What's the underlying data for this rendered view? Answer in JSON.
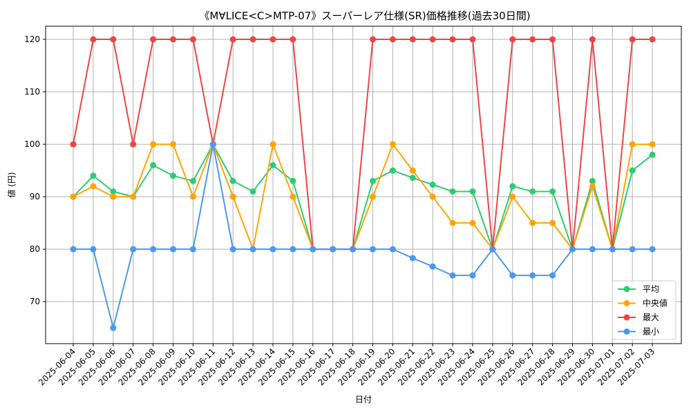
{
  "chart_data": {
    "type": "line",
    "title": "《M∀LICE<C>MTP-07》スーパーレア仕様(SR)価格推移(過去30日間)",
    "xlabel": "日付",
    "ylabel": "値 (円)",
    "ylim": [
      62,
      122.5
    ],
    "yticks": [
      70,
      80,
      90,
      100,
      110,
      120
    ],
    "grid": true,
    "legend_position": "lower-right",
    "categories": [
      "2025-06-04",
      "2025-06-05",
      "2025-06-06",
      "2025-06-07",
      "2025-06-08",
      "2025-06-09",
      "2025-06-10",
      "2025-06-11",
      "2025-06-12",
      "2025-06-13",
      "2025-06-14",
      "2025-06-15",
      "2025-06-16",
      "2025-06-17",
      "2025-06-18",
      "2025-06-19",
      "2025-06-20",
      "2025-06-21",
      "2025-06-22",
      "2025-06-23",
      "2025-06-24",
      "2025-06-25",
      "2025-06-26",
      "2025-06-27",
      "2025-06-28",
      "2025-06-29",
      "2025-06-30",
      "2025-07-01",
      "2025-07-02",
      "2025-07-03"
    ],
    "series": [
      {
        "name": "平均",
        "color": "#2ecc71",
        "values": [
          90,
          94,
          91,
          90,
          96,
          94,
          93,
          100,
          93,
          91,
          96,
          93,
          80,
          80,
          80,
          93,
          95,
          93.6,
          92.3,
          91,
          91,
          80,
          92,
          91,
          91,
          80,
          93,
          80,
          95,
          98
        ]
      },
      {
        "name": "中央値",
        "color": "#ffa500",
        "values": [
          90,
          92,
          90,
          90,
          100,
          100,
          90,
          100,
          90,
          80,
          100,
          90,
          80,
          80,
          80,
          90,
          100,
          95,
          90,
          85,
          85,
          80,
          90,
          85,
          85,
          80,
          92,
          80,
          100,
          100
        ]
      },
      {
        "name": "最大",
        "color": "#ef4444",
        "values": [
          100,
          120,
          120,
          100,
          120,
          120,
          120,
          100,
          120,
          120,
          120,
          120,
          80,
          80,
          80,
          120,
          120,
          120,
          120,
          120,
          120,
          80,
          120,
          120,
          120,
          80,
          120,
          80,
          120,
          120
        ]
      },
      {
        "name": "最小",
        "color": "#4a98f0",
        "values": [
          80,
          80,
          65,
          80,
          80,
          80,
          80,
          100,
          80,
          80,
          80,
          80,
          80,
          80,
          80,
          80,
          80,
          78.3,
          76.7,
          75,
          75,
          80,
          75,
          75,
          75,
          80,
          80,
          80,
          80,
          80
        ]
      }
    ]
  }
}
